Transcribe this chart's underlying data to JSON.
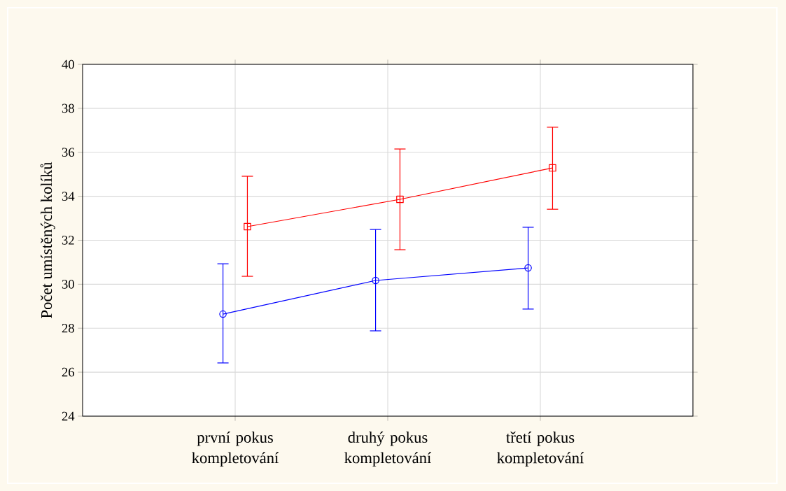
{
  "chart_data": {
    "type": "line",
    "ylabel": "Počet umístěných kolíků",
    "categories": [
      "první pokus kompletování",
      "druhý pokus kompletování",
      "třetí pokus kompletování"
    ],
    "series": [
      {
        "color": "#0000ff",
        "marker": "circle",
        "values": [
          28.64,
          30.17,
          30.74
        ],
        "errors": [
          [
            26.42,
            30.93
          ],
          [
            27.88,
            32.49
          ],
          [
            28.87,
            32.59
          ]
        ]
      },
      {
        "color": "#ff0000",
        "marker": "square",
        "values": [
          32.62,
          33.86,
          35.29
        ],
        "errors": [
          [
            30.36,
            34.91
          ],
          [
            31.57,
            36.15
          ],
          [
            33.41,
            37.14
          ]
        ]
      }
    ],
    "ylim": [
      24,
      40
    ],
    "yticks": [
      24,
      26,
      28,
      30,
      32,
      34,
      36,
      38,
      40
    ],
    "grid": true,
    "line_style": "solid"
  }
}
